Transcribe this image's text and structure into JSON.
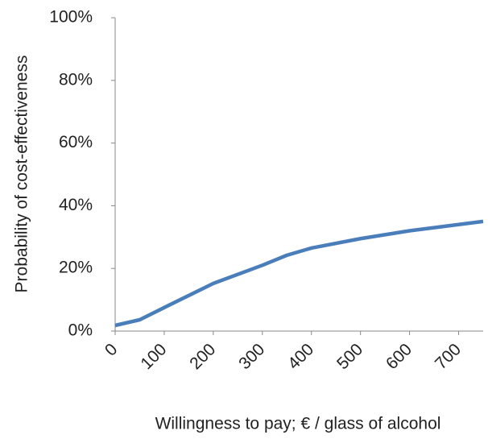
{
  "chart_data": {
    "type": "line",
    "x_label": "Willingness to pay; € / glass of alcohol",
    "y_label": "Probability of cost-effectiveness",
    "x": [
      0,
      50,
      100,
      200,
      300,
      350,
      400,
      500,
      600,
      700,
      750
    ],
    "series": [
      {
        "name": "Probability of cost-effectiveness",
        "color": "#4a7ebb",
        "values": [
          1.8,
          3.6,
          7.5,
          15.2,
          21,
          24.2,
          26.5,
          29.5,
          32,
          34,
          35
        ]
      }
    ],
    "xlim": [
      0,
      750
    ],
    "xticks": [
      0,
      100,
      200,
      300,
      400,
      500,
      600,
      700
    ],
    "ylim": [
      0,
      100
    ],
    "yticks": [
      {
        "value": 0,
        "label": "0%"
      },
      {
        "value": 20,
        "label": "20%"
      },
      {
        "value": 40,
        "label": "40%"
      },
      {
        "value": 60,
        "label": "60%"
      },
      {
        "value": 80,
        "label": "80%"
      },
      {
        "value": 100,
        "label": "100%"
      }
    ],
    "grid": false
  }
}
